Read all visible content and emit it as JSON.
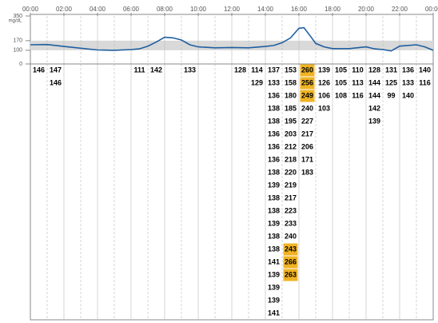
{
  "chart_data": {
    "type": "line",
    "y_label": "mg/dL",
    "x": [
      0,
      1,
      2,
      3,
      4,
      5,
      6,
      6.5,
      7,
      7.5,
      8,
      8.5,
      9,
      9.5,
      10,
      11,
      12,
      13,
      14,
      14.5,
      15,
      15.5,
      16,
      16.3,
      16.7,
      17,
      17.5,
      18,
      19,
      20,
      20.5,
      21,
      21.5,
      22,
      23,
      23.5,
      24
    ],
    "values": [
      140,
      142,
      128,
      115,
      102,
      100,
      105,
      110,
      130,
      160,
      195,
      190,
      175,
      140,
      125,
      118,
      120,
      118,
      128,
      135,
      155,
      190,
      260,
      265,
      200,
      150,
      125,
      112,
      112,
      125,
      110,
      105,
      95,
      130,
      140,
      125,
      100
    ],
    "color": "#1f5fa0",
    "band": [
      100,
      170
    ],
    "band_color": "#d9d9d9",
    "xlim": [
      0,
      24
    ],
    "xticks": [
      {
        "value": 0,
        "label": "00:00"
      },
      {
        "value": 2,
        "label": "02:00"
      },
      {
        "value": 4,
        "label": "04:00"
      },
      {
        "value": 6,
        "label": "06:00"
      },
      {
        "value": 8,
        "label": "08:00"
      },
      {
        "value": 10,
        "label": "10:00"
      },
      {
        "value": 12,
        "label": "12:00"
      },
      {
        "value": 14,
        "label": "14:00"
      },
      {
        "value": 16,
        "label": "16:00"
      },
      {
        "value": 18,
        "label": "18:00"
      },
      {
        "value": 20,
        "label": "20:00"
      },
      {
        "value": 22,
        "label": "22:00"
      },
      {
        "value": 24,
        "label": "00:00"
      }
    ],
    "ylim": [
      0,
      350
    ],
    "yticks": [
      0,
      100,
      170,
      350
    ]
  },
  "table": {
    "columns": [
      [
        146
      ],
      [
        147,
        146
      ],
      [],
      [],
      [],
      [],
      [
        111
      ],
      [
        142
      ],
      [],
      [
        133
      ],
      [],
      [],
      [
        128
      ],
      [
        114,
        129
      ],
      [
        137,
        133,
        136,
        138,
        138,
        136,
        136,
        136,
        138,
        139,
        138,
        138,
        139,
        138,
        138,
        141,
        139,
        139,
        139,
        141
      ],
      [
        153,
        158,
        180,
        185,
        195,
        203,
        212,
        218,
        220,
        219,
        217,
        223,
        233,
        240,
        243,
        266,
        263
      ],
      [
        260,
        256,
        249,
        240,
        227,
        217,
        206,
        171,
        183
      ],
      [
        139,
        126,
        106,
        103
      ],
      [
        105,
        105,
        108
      ],
      [
        110,
        113,
        116
      ],
      [
        128,
        144,
        144,
        142,
        139
      ],
      [
        131,
        125,
        99
      ],
      [
        136,
        133,
        140
      ],
      [
        140,
        116
      ]
    ],
    "highlight_color": "#f0b323",
    "highlight": [
      [
        15,
        14
      ],
      [
        15,
        15
      ],
      [
        15,
        16
      ],
      [
        16,
        0
      ],
      [
        16,
        1
      ],
      [
        16,
        2
      ]
    ]
  }
}
